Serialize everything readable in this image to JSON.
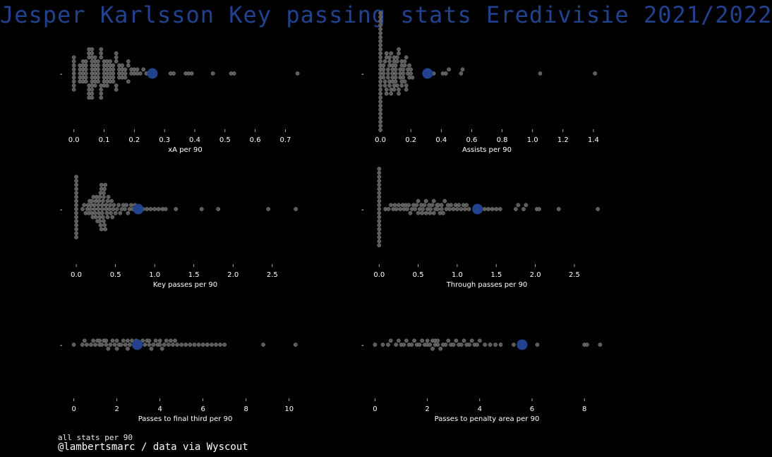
{
  "title": "Jesper Karlsson Key passing stats Eredivisie 2021/2022",
  "footer": {
    "line1": "all stats per 90",
    "line2": "@lambertsmarc / data via Wyscout"
  },
  "colors": {
    "background": "#000000",
    "dot": "#5b5b5b",
    "dot_edge": "#8a8a8a",
    "highlight": "#22418f",
    "text": "#ffffff"
  },
  "chart_data": [
    {
      "type": "scatter",
      "subtype": "swarm",
      "xlabel": "xA per 90",
      "ytick": "-",
      "xticks": [
        0.0,
        0.1,
        0.2,
        0.3,
        0.4,
        0.5,
        0.6,
        0.7
      ],
      "xtick_labels": [
        "0.0",
        "0.1",
        "0.2",
        "0.3",
        "0.4",
        "0.5",
        "0.6",
        "0.7"
      ],
      "xlim": [
        -0.018,
        0.755
      ],
      "highlight_value": 0.26,
      "values": [
        0,
        0,
        0,
        0,
        0,
        0,
        0,
        0,
        0,
        0.02,
        0.02,
        0.02,
        0.02,
        0.02,
        0.03,
        0.03,
        0.03,
        0.03,
        0.03,
        0.03,
        0.04,
        0.04,
        0.04,
        0.04,
        0.04,
        0.04,
        0.05,
        0.05,
        0.05,
        0.05,
        0.05,
        0.05,
        0.05,
        0.06,
        0.06,
        0.06,
        0.06,
        0.06,
        0.06,
        0.06,
        0.06,
        0.06,
        0.06,
        0.06,
        0.06,
        0.06,
        0.07,
        0.07,
        0.07,
        0.07,
        0.07,
        0.07,
        0.07,
        0.07,
        0.08,
        0.08,
        0.08,
        0.08,
        0.08,
        0.08,
        0.09,
        0.09,
        0.09,
        0.09,
        0.09,
        0.09,
        0.09,
        0.1,
        0.1,
        0.1,
        0.1,
        0.1,
        0.1,
        0.1,
        0.11,
        0.11,
        0.11,
        0.11,
        0.11,
        0.11,
        0.11,
        0.12,
        0.12,
        0.12,
        0.12,
        0.12,
        0.12,
        0.13,
        0.13,
        0.13,
        0.13,
        0.13,
        0.14,
        0.14,
        0.14,
        0.14,
        0.14,
        0.15,
        0.15,
        0.15,
        0.15,
        0.16,
        0.16,
        0.16,
        0.16,
        0.17,
        0.17,
        0.17,
        0.18,
        0.18,
        0.18,
        0.19,
        0.19,
        0.2,
        0.2,
        0.21,
        0.21,
        0.22,
        0.23,
        0.24,
        0.32,
        0.33,
        0.37,
        0.38,
        0.39,
        0.46,
        0.52,
        0.53,
        0.74
      ]
    },
    {
      "type": "scatter",
      "subtype": "swarm",
      "xlabel": "Assists per 90",
      "ytick": "-",
      "xticks": [
        0.0,
        0.2,
        0.4,
        0.6,
        0.8,
        1.0,
        1.2,
        1.4
      ],
      "xtick_labels": [
        "0.0",
        "0.2",
        "0.4",
        "0.6",
        "0.8",
        "1.0",
        "1.2",
        "1.4"
      ],
      "xlim": [
        -0.07,
        1.47
      ],
      "highlight_value": 0.31,
      "values": [
        0,
        0,
        0,
        0,
        0,
        0,
        0,
        0,
        0,
        0,
        0,
        0,
        0,
        0,
        0,
        0,
        0,
        0,
        0,
        0,
        0,
        0,
        0,
        0,
        0,
        0,
        0,
        0,
        0,
        0,
        0.02,
        0.02,
        0.02,
        0.02,
        0.03,
        0.03,
        0.03,
        0.04,
        0.04,
        0.04,
        0.04,
        0.05,
        0.05,
        0.05,
        0.06,
        0.06,
        0.06,
        0.06,
        0.06,
        0.07,
        0.07,
        0.07,
        0.08,
        0.08,
        0.08,
        0.08,
        0.08,
        0.09,
        0.09,
        0.09,
        0.09,
        0.1,
        0.1,
        0.1,
        0.1,
        0.1,
        0.11,
        0.11,
        0.11,
        0.12,
        0.12,
        0.12,
        0.12,
        0.13,
        0.13,
        0.13,
        0.14,
        0.14,
        0.14,
        0.14,
        0.15,
        0.15,
        0.15,
        0.16,
        0.16,
        0.16,
        0.17,
        0.17,
        0.17,
        0.18,
        0.18,
        0.19,
        0.19,
        0.2,
        0.2,
        0.21,
        0.35,
        0.41,
        0.43,
        0.45,
        0.53,
        0.54,
        1.05,
        1.41
      ]
    },
    {
      "type": "scatter",
      "subtype": "swarm",
      "xlabel": "Key passes per 90",
      "ytick": "-",
      "xticks": [
        0.0,
        0.5,
        1.0,
        1.5,
        2.0,
        2.5
      ],
      "xtick_labels": [
        "0.0",
        "0.5",
        "1.0",
        "1.5",
        "2.0",
        "2.5"
      ],
      "xlim": [
        -0.1,
        2.88
      ],
      "highlight_value": 0.79,
      "values": [
        0,
        0,
        0,
        0,
        0,
        0,
        0,
        0,
        0,
        0,
        0,
        0,
        0,
        0,
        0,
        0,
        0.08,
        0.1,
        0.12,
        0.14,
        0.15,
        0.16,
        0.17,
        0.18,
        0.19,
        0.2,
        0.2,
        0.21,
        0.22,
        0.23,
        0.23,
        0.24,
        0.25,
        0.25,
        0.26,
        0.27,
        0.28,
        0.28,
        0.29,
        0.29,
        0.3,
        0.3,
        0.3,
        0.31,
        0.31,
        0.32,
        0.32,
        0.32,
        0.33,
        0.33,
        0.33,
        0.34,
        0.34,
        0.35,
        0.35,
        0.35,
        0.36,
        0.36,
        0.37,
        0.37,
        0.38,
        0.38,
        0.39,
        0.4,
        0.4,
        0.41,
        0.42,
        0.43,
        0.44,
        0.45,
        0.46,
        0.47,
        0.48,
        0.5,
        0.52,
        0.54,
        0.56,
        0.58,
        0.6,
        0.62,
        0.64,
        0.66,
        0.68,
        0.7,
        0.72,
        0.75,
        0.85,
        0.9,
        0.95,
        1.0,
        1.05,
        1.1,
        1.14,
        1.27,
        1.6,
        1.81,
        2.45,
        2.8
      ]
    },
    {
      "type": "scatter",
      "subtype": "swarm",
      "xlabel": "Through passes per 90",
      "ytick": "-",
      "xticks": [
        0.0,
        0.5,
        1.0,
        1.5,
        2.0,
        2.5
      ],
      "xtick_labels": [
        "0.0",
        "0.5",
        "1.0",
        "1.5",
        "2.0",
        "2.5"
      ],
      "xlim": [
        -0.12,
        2.88
      ],
      "highlight_value": 1.26,
      "values": [
        0,
        0,
        0,
        0,
        0,
        0,
        0,
        0,
        0,
        0,
        0,
        0,
        0,
        0,
        0,
        0,
        0,
        0,
        0,
        0,
        0.08,
        0.12,
        0.15,
        0.18,
        0.2,
        0.22,
        0.25,
        0.27,
        0.3,
        0.32,
        0.34,
        0.36,
        0.38,
        0.4,
        0.42,
        0.44,
        0.46,
        0.48,
        0.5,
        0.5,
        0.52,
        0.54,
        0.55,
        0.56,
        0.58,
        0.6,
        0.6,
        0.62,
        0.64,
        0.65,
        0.66,
        0.68,
        0.7,
        0.7,
        0.72,
        0.74,
        0.75,
        0.76,
        0.78,
        0.8,
        0.8,
        0.82,
        0.84,
        0.86,
        0.88,
        0.9,
        0.92,
        0.95,
        0.98,
        1.0,
        1.02,
        1.05,
        1.08,
        1.1,
        1.12,
        1.15,
        1.3,
        1.35,
        1.4,
        1.45,
        1.5,
        1.55,
        1.75,
        1.78,
        1.85,
        1.88,
        2.02,
        2.05,
        2.3,
        2.8
      ]
    },
    {
      "type": "scatter",
      "subtype": "swarm",
      "xlabel": "Passes to final third per 90",
      "ytick": "-",
      "xticks": [
        0,
        2,
        4,
        6,
        8,
        10
      ],
      "xtick_labels": [
        "0",
        "2",
        "4",
        "6",
        "8",
        "10"
      ],
      "xlim": [
        -0.25,
        10.6
      ],
      "highlight_value": 2.95,
      "values": [
        0,
        0.4,
        0.5,
        0.6,
        0.8,
        0.9,
        1.0,
        1.1,
        1.2,
        1.2,
        1.3,
        1.4,
        1.5,
        1.5,
        1.6,
        1.7,
        1.8,
        1.9,
        2.0,
        2.0,
        2.1,
        2.2,
        2.3,
        2.4,
        2.5,
        2.5,
        2.6,
        2.7,
        2.8,
        2.9,
        3.0,
        3.1,
        3.2,
        3.3,
        3.4,
        3.5,
        3.5,
        3.6,
        3.7,
        3.8,
        3.9,
        4.0,
        4.0,
        4.1,
        4.2,
        4.3,
        4.4,
        4.5,
        4.6,
        4.7,
        4.8,
        5.0,
        5.2,
        5.4,
        5.6,
        5.8,
        6.0,
        6.2,
        6.4,
        6.6,
        6.8,
        7.0,
        8.8,
        10.3
      ]
    },
    {
      "type": "scatter",
      "subtype": "swarm",
      "xlabel": "Passes to penalty area per 90",
      "ytick": "-",
      "xticks": [
        0,
        2,
        4,
        6,
        8
      ],
      "xtick_labels": [
        "0",
        "2",
        "4",
        "6",
        "8"
      ],
      "xlim": [
        -0.2,
        8.75
      ],
      "highlight_value": 5.62,
      "values": [
        0,
        0.3,
        0.5,
        0.6,
        0.8,
        0.9,
        1.0,
        1.1,
        1.2,
        1.3,
        1.4,
        1.5,
        1.6,
        1.7,
        1.8,
        1.9,
        2.0,
        2.0,
        2.1,
        2.2,
        2.2,
        2.3,
        2.3,
        2.4,
        2.4,
        2.5,
        2.6,
        2.7,
        2.8,
        2.9,
        3.0,
        3.1,
        3.2,
        3.3,
        3.4,
        3.5,
        3.6,
        3.7,
        3.8,
        3.9,
        4.0,
        4.2,
        4.4,
        4.6,
        4.8,
        5.3,
        5.5,
        6.2,
        8.0,
        8.1,
        8.6
      ]
    }
  ]
}
